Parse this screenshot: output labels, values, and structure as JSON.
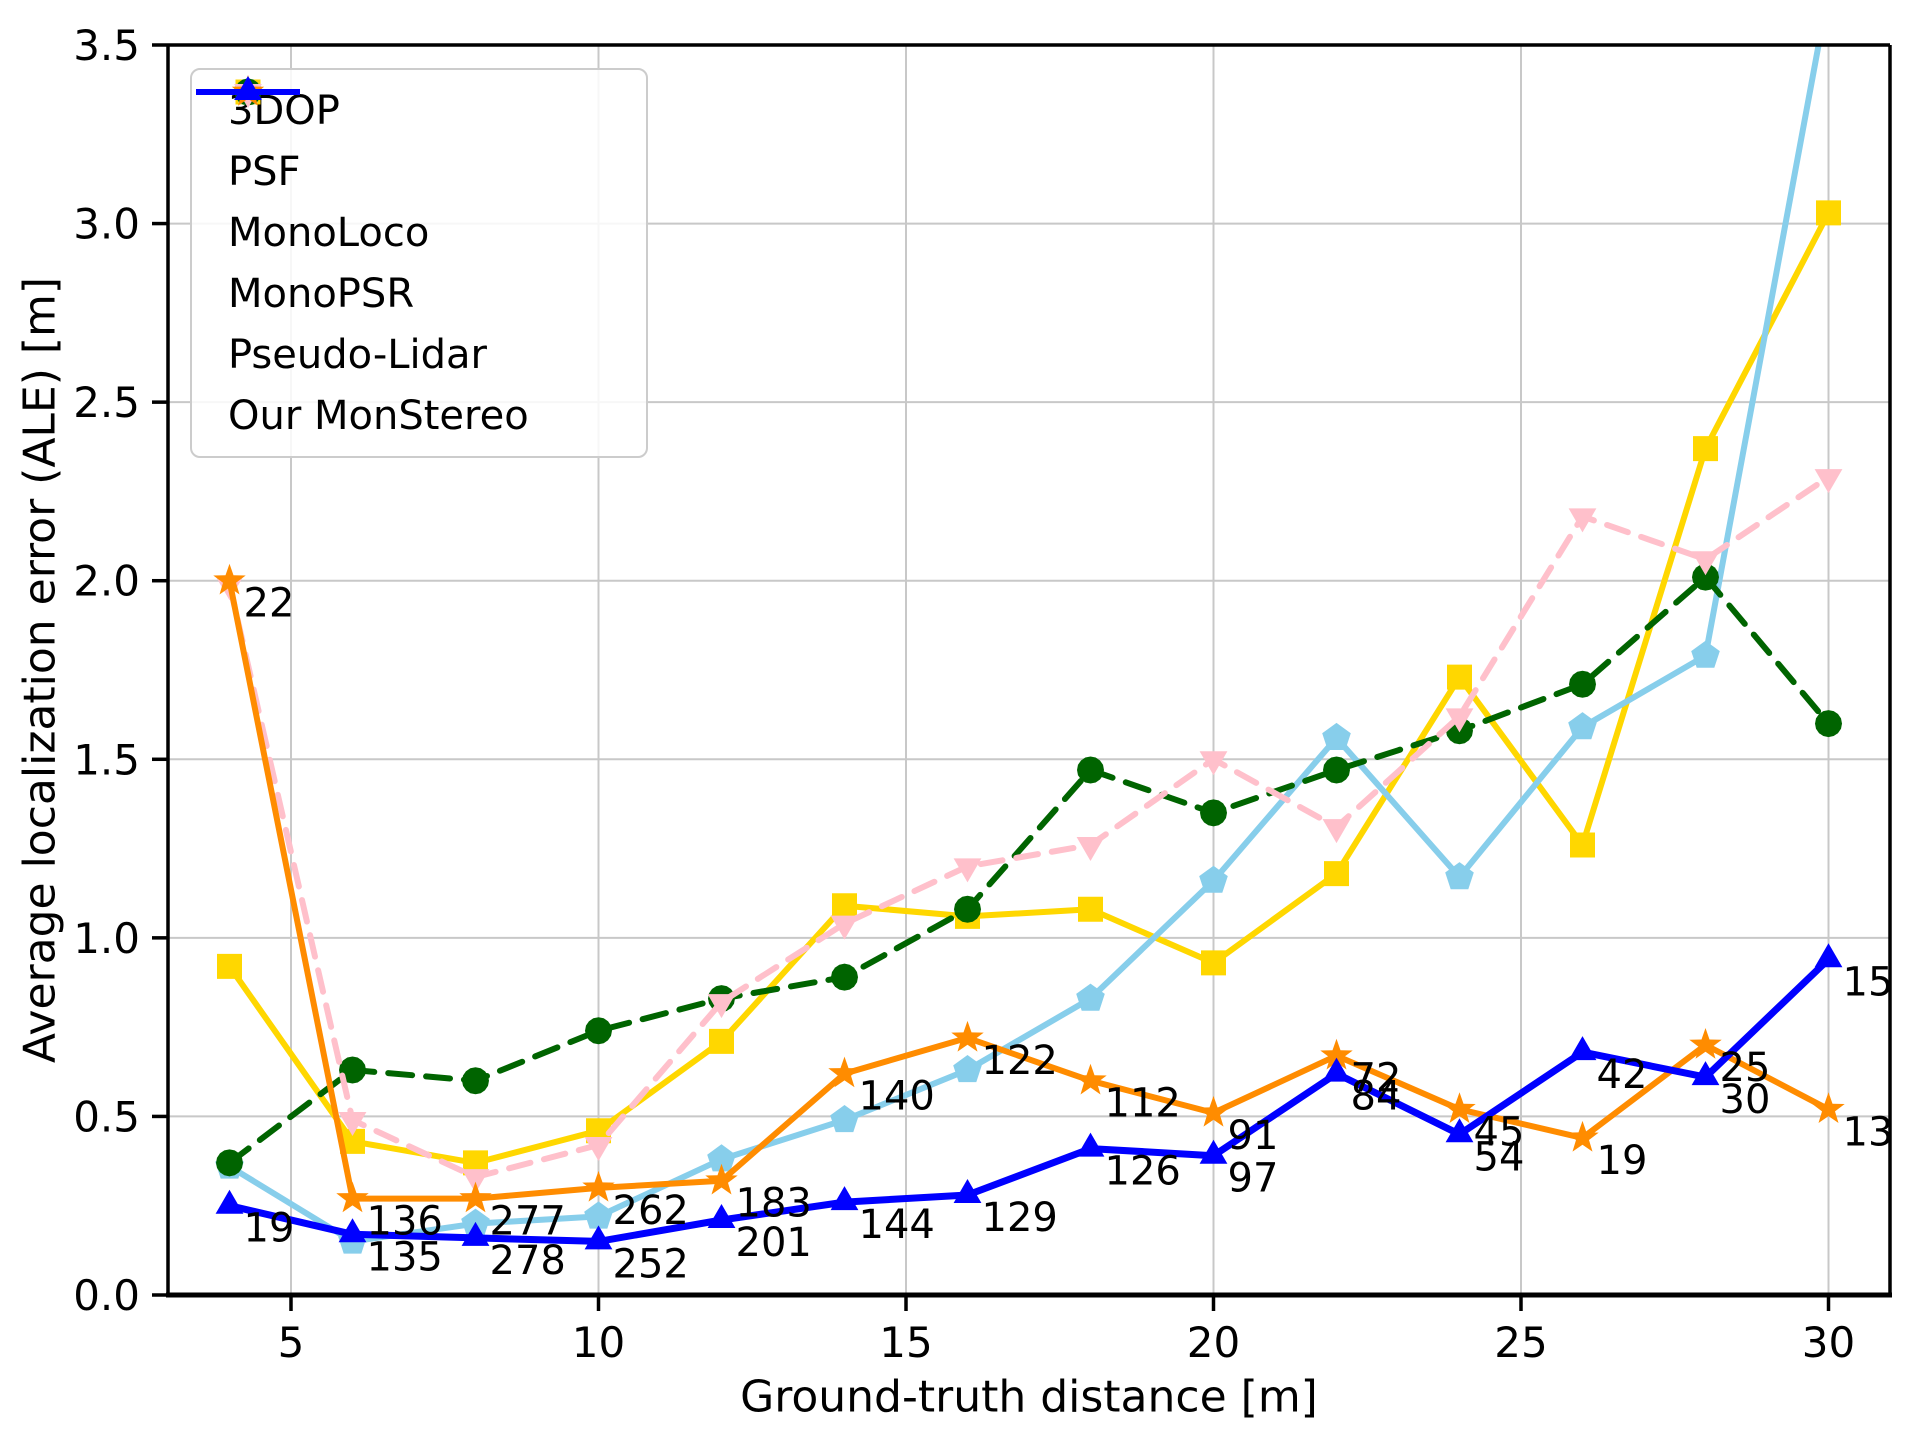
{
  "figure": {
    "xlabel": "Ground-truth distance [m]",
    "ylabel": "Average localization error (ALE) [m]",
    "x_ticks": [
      "5",
      "10",
      "15",
      "20",
      "25",
      "30"
    ],
    "y_ticks": [
      "0.0",
      "0.5",
      "1.0",
      "1.5",
      "2.0",
      "2.5",
      "3.0",
      "3.5"
    ]
  },
  "chart_data": {
    "type": "line",
    "title": "",
    "xlabel": "Ground-truth distance [m]",
    "ylabel": "Average localization error (ALE) [m]",
    "xlim": [
      3,
      31
    ],
    "ylim": [
      0,
      3.5
    ],
    "grid": true,
    "legend_position": "upper-left",
    "x": [
      4,
      6,
      8,
      10,
      12,
      14,
      16,
      18,
      20,
      22,
      24,
      26,
      28,
      30
    ],
    "series": [
      {
        "name": "3DOP",
        "color": "#FFD700",
        "marker": "square",
        "line_style": "solid",
        "values": [
          0.92,
          0.43,
          0.37,
          0.46,
          0.71,
          1.09,
          1.06,
          1.08,
          0.93,
          1.18,
          1.73,
          1.26,
          2.37,
          3.03
        ]
      },
      {
        "name": "PSF",
        "color": "#87CEEB",
        "marker": "pentagon",
        "line_style": "solid",
        "values": [
          0.36,
          0.15,
          0.2,
          0.22,
          0.38,
          0.49,
          0.63,
          0.83,
          1.16,
          1.56,
          1.17,
          1.59,
          1.79,
          3.65
        ]
      },
      {
        "name": "MonoLoco",
        "color": "#006400",
        "marker": "circle",
        "line_style": "dashed",
        "values": [
          0.37,
          0.63,
          0.6,
          0.74,
          0.83,
          0.89,
          1.08,
          1.47,
          1.35,
          1.47,
          1.58,
          1.71,
          2.01,
          1.6
        ]
      },
      {
        "name": "MonoPSR",
        "color": "#FFC0CB",
        "marker": "triangle-down",
        "line_style": "dashed",
        "values": [
          1.99,
          0.49,
          0.33,
          0.42,
          0.82,
          1.04,
          1.2,
          1.26,
          1.5,
          1.31,
          1.62,
          2.18,
          2.06,
          2.29
        ]
      },
      {
        "name": "Pseudo-Lidar",
        "color": "#FF8C00",
        "marker": "star",
        "line_style": "solid",
        "values": [
          2.0,
          0.27,
          0.27,
          0.3,
          0.32,
          0.62,
          0.72,
          0.6,
          0.51,
          0.67,
          0.52,
          0.44,
          0.7,
          0.52
        ]
      },
      {
        "name": "Our MonStereo",
        "color": "#0000FF",
        "marker": "triangle-up",
        "line_style": "solid",
        "values": [
          0.25,
          0.17,
          0.16,
          0.15,
          0.21,
          0.26,
          0.28,
          0.41,
          0.39,
          0.62,
          0.45,
          0.68,
          0.61,
          0.94
        ]
      }
    ],
    "point_count_annotations": {
      "pseudo_lidar": [
        22,
        136,
        277,
        262,
        183,
        140,
        122,
        112,
        91,
        72,
        45,
        19,
        25,
        13
      ],
      "our_monstereo": [
        19,
        135,
        278,
        252,
        201,
        144,
        129,
        126,
        97,
        84,
        54,
        42,
        30,
        15
      ]
    }
  },
  "style": {
    "grid_color": "#c8c8c8",
    "spine_color": "#000000",
    "text_color": "#000000",
    "annotation_color": "#000000"
  }
}
